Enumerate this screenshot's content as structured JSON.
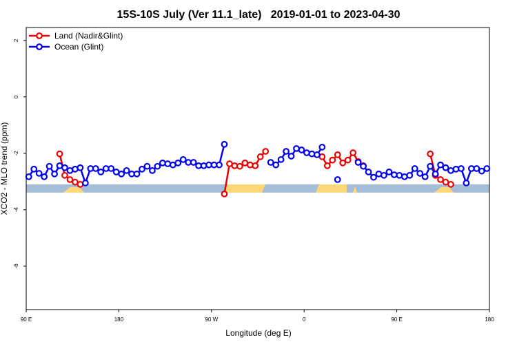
{
  "chart_data": {
    "type": "line",
    "title": "15S-10S July (Ver 11.1_late)   2019-01-01 to 2023-04-30",
    "xlabel": "Longitude (deg E)",
    "ylabel": "XCO2 - MLO trend (ppm)",
    "x": [
      92.5,
      97.5,
      102.5,
      107.5,
      112.5,
      117.5,
      122.5,
      127.5,
      132.5,
      137.5,
      142.5,
      147.5,
      152.5,
      157.5,
      162.5,
      167.5,
      172.5,
      177.5,
      182.5,
      187.5,
      192.5,
      197.5,
      202.5,
      207.5,
      212.5,
      217.5,
      222.5,
      227.5,
      232.5,
      237.5,
      242.5,
      247.5,
      252.5,
      257.5,
      262.5,
      267.5,
      272.5,
      277.5,
      282.5,
      287.5,
      292.5,
      297.5,
      302.5,
      307.5,
      312.5,
      317.5,
      322.5,
      327.5,
      332.5,
      337.5,
      342.5,
      347.5,
      352.5,
      357.5,
      362.5,
      367.5,
      372.5,
      377.5,
      382.5,
      387.5,
      392.5,
      397.5,
      402.5,
      407.5,
      412.5,
      417.5,
      422.5,
      427.5,
      432.5,
      437.5,
      442.5,
      447.5,
      452.5,
      457.5,
      462.5,
      467.5,
      472.5,
      477.5,
      482.5,
      487.5,
      492.5,
      497.5,
      502.5,
      507.5,
      512.5,
      517.5,
      522.5,
      527.5,
      532.5,
      537.5
    ],
    "series": [
      {
        "name": "Land (Nadir&Glint)",
        "color": "#ee0000",
        "values": [
          null,
          null,
          null,
          null,
          null,
          null,
          -2.02,
          -2.78,
          -2.93,
          -3.02,
          -3.1,
          null,
          null,
          null,
          null,
          null,
          null,
          null,
          null,
          null,
          null,
          null,
          null,
          null,
          null,
          null,
          null,
          null,
          null,
          null,
          null,
          null,
          null,
          null,
          null,
          null,
          null,
          null,
          -3.44,
          -2.37,
          -2.44,
          -2.46,
          -2.34,
          -2.41,
          -2.44,
          -2.12,
          -1.93,
          null,
          null,
          null,
          null,
          null,
          null,
          null,
          null,
          null,
          null,
          -2.12,
          -2.44,
          -2.24,
          -2.05,
          -2.34,
          -2.24,
          -1.98,
          -2.29,
          -2.44,
          null,
          null,
          null,
          null,
          null,
          null,
          null,
          null,
          null,
          null,
          null,
          null,
          -2.02,
          -2.78,
          -2.93,
          -3.02,
          -3.1,
          null,
          null,
          null,
          null,
          null,
          null,
          null
        ]
      },
      {
        "name": "Ocean (Glint)",
        "color": "#0000ee",
        "values": [
          -2.83,
          -2.56,
          -2.71,
          -2.83,
          -2.46,
          -2.73,
          -2.44,
          -2.51,
          -2.61,
          -2.56,
          -2.51,
          -3.05,
          -2.54,
          -2.54,
          -2.66,
          -2.54,
          -2.54,
          -2.66,
          -2.73,
          -2.61,
          -2.73,
          -2.73,
          -2.56,
          -2.46,
          -2.61,
          -2.46,
          -2.34,
          -2.37,
          -2.41,
          -2.34,
          -2.22,
          -2.32,
          -2.32,
          -2.44,
          -2.44,
          -2.41,
          -2.41,
          -2.41,
          -1.68,
          null,
          null,
          null,
          null,
          null,
          null,
          null,
          null,
          -2.32,
          -2.41,
          -2.22,
          -1.93,
          -2.1,
          -1.83,
          -1.88,
          -1.98,
          -2.02,
          -2.05,
          -1.78,
          null,
          null,
          -2.93,
          null,
          null,
          null,
          -2.32,
          -2.46,
          -2.66,
          -2.85,
          -2.73,
          -2.78,
          -2.66,
          -2.76,
          -2.78,
          -2.83,
          -2.78,
          -2.54,
          -2.71,
          -2.83,
          -2.46,
          -2.73,
          -2.41,
          -2.51,
          -2.61,
          -2.56,
          -2.54,
          -3.05,
          -2.54,
          -2.54,
          -2.63,
          -2.54
        ]
      }
    ],
    "xlim": [
      90,
      540
    ],
    "xticks": [
      {
        "value": 90,
        "label": "90 E"
      },
      {
        "value": 180,
        "label": "180"
      },
      {
        "value": 270,
        "label": "90 W"
      },
      {
        "value": 360,
        "label": "0"
      },
      {
        "value": 450,
        "label": "90 E"
      },
      {
        "value": 540,
        "label": "180"
      }
    ],
    "ylim": [
      -7.54,
      2.46
    ],
    "yticks": [
      -6,
      -4,
      -2,
      0,
      2
    ],
    "legend": "top-left"
  }
}
